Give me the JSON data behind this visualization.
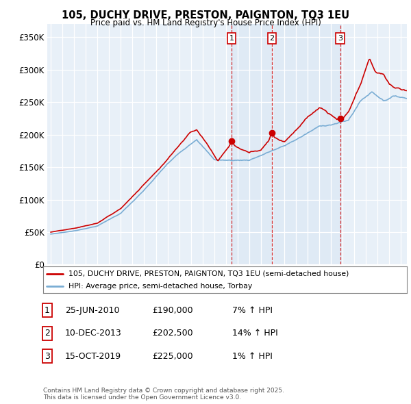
{
  "title": "105, DUCHY DRIVE, PRESTON, PAIGNTON, TQ3 1EU",
  "subtitle": "Price paid vs. HM Land Registry's House Price Index (HPI)",
  "ylabel_ticks": [
    "£0",
    "£50K",
    "£100K",
    "£150K",
    "£200K",
    "£250K",
    "£300K",
    "£350K"
  ],
  "ytick_values": [
    0,
    50000,
    100000,
    150000,
    200000,
    250000,
    300000,
    350000
  ],
  "ylim": [
    0,
    370000
  ],
  "xlim_start": 1994.7,
  "xlim_end": 2025.5,
  "legend_line1": "105, DUCHY DRIVE, PRESTON, PAIGNTON, TQ3 1EU (semi-detached house)",
  "legend_line2": "HPI: Average price, semi-detached house, Torbay",
  "line_color_red": "#cc0000",
  "line_color_blue": "#7aadd4",
  "shade_color": "#dce8f5",
  "transaction_markers": [
    {
      "label": "1",
      "date_x": 2010.49,
      "price": 190000,
      "info": "25-JUN-2010",
      "amount": "£190,000",
      "pct": "7% ↑ HPI"
    },
    {
      "label": "2",
      "date_x": 2013.94,
      "price": 202500,
      "info": "10-DEC-2013",
      "amount": "£202,500",
      "pct": "14% ↑ HPI"
    },
    {
      "label": "3",
      "date_x": 2019.79,
      "price": 225000,
      "info": "15-OCT-2019",
      "amount": "£225,000",
      "pct": "1% ↑ HPI"
    }
  ],
  "footnote": "Contains HM Land Registry data © Crown copyright and database right 2025.\nThis data is licensed under the Open Government Licence v3.0.",
  "background_color": "#e8f0f8"
}
